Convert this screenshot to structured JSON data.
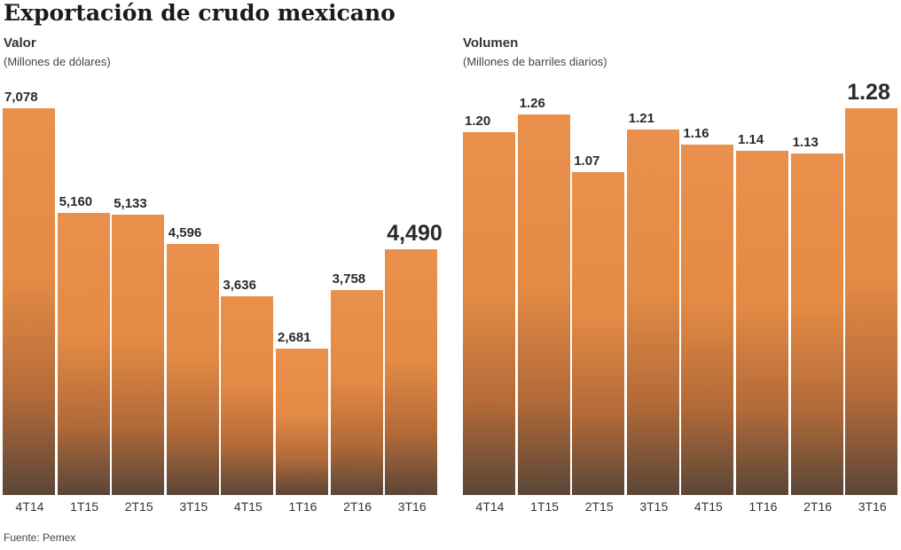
{
  "title": "Exportación de crudo mexicano",
  "footer": "Fuente: Pemex",
  "colors": {
    "bar": "#e38a45",
    "text": "#2a2a2a"
  },
  "chart_data": [
    {
      "type": "bar",
      "title": "Valor",
      "ylabel": "(Millones de dólares)",
      "categories": [
        "4T14",
        "1T15",
        "2T15",
        "3T15",
        "4T15",
        "1T16",
        "2T16",
        "3T16"
      ],
      "values": [
        7078,
        5160,
        5133,
        4596,
        3636,
        2681,
        3758,
        4490
      ],
      "labels": [
        "7,078",
        "5,160",
        "5,133",
        "4,596",
        "3,636",
        "2,681",
        "3,758",
        "4,490"
      ],
      "ylim": [
        0,
        7078
      ]
    },
    {
      "type": "bar",
      "title": "Volumen",
      "ylabel": "(Millones de barriles diarios)",
      "categories": [
        "4T14",
        "1T15",
        "2T15",
        "3T15",
        "4T15",
        "1T16",
        "2T16",
        "3T16"
      ],
      "values": [
        1.2,
        1.26,
        1.07,
        1.21,
        1.16,
        1.14,
        1.13,
        1.28
      ],
      "labels": [
        "1.20",
        "1.26",
        "1.07",
        "1.21",
        "1.16",
        "1.14",
        "1.13",
        "1.28"
      ],
      "ylim": [
        0,
        1.28
      ]
    }
  ]
}
